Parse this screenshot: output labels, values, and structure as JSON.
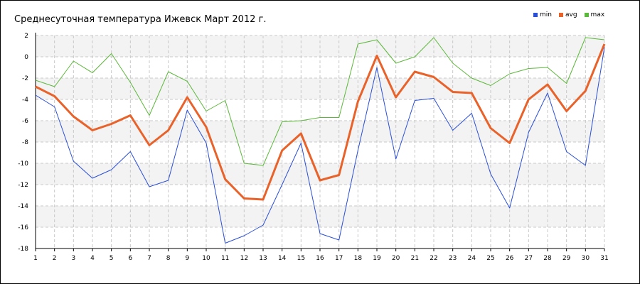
{
  "chart_data": {
    "type": "line",
    "title": "Среднесуточная температура Ижевск  Март 2012 г.",
    "xlabel": "",
    "ylabel": "",
    "x": [
      1,
      2,
      3,
      4,
      5,
      6,
      7,
      8,
      9,
      10,
      11,
      12,
      13,
      14,
      15,
      16,
      17,
      18,
      19,
      20,
      21,
      22,
      23,
      24,
      25,
      26,
      27,
      28,
      29,
      30,
      31
    ],
    "ylim": [
      -18,
      2
    ],
    "yticks": [
      2,
      0,
      -2,
      -4,
      -6,
      -8,
      -10,
      -12,
      -14,
      -16,
      -18
    ],
    "grid": true,
    "legend_position": "top-right",
    "series": [
      {
        "name": "min",
        "color": "#2a4fd6",
        "values": [
          -3.6,
          -4.7,
          -9.8,
          -11.4,
          -10.6,
          -8.9,
          -12.2,
          -11.6,
          -5.0,
          -8.1,
          -17.5,
          -16.8,
          -15.8,
          -12.0,
          -8.1,
          -16.6,
          -17.2,
          -8.8,
          -1.0,
          -9.6,
          -4.1,
          -3.9,
          -6.9,
          -5.3,
          -11.0,
          -14.2,
          -7.1,
          -3.4,
          -8.9,
          -10.2,
          0.9
        ]
      },
      {
        "name": "avg",
        "color": "#e8622a",
        "values": [
          -2.8,
          -3.7,
          -5.6,
          -6.9,
          -6.3,
          -5.5,
          -8.3,
          -6.9,
          -3.8,
          -6.6,
          -11.5,
          -13.3,
          -13.4,
          -8.8,
          -7.2,
          -11.6,
          -11.1,
          -4.2,
          0.1,
          -3.8,
          -1.4,
          -1.9,
          -3.3,
          -3.4,
          -6.7,
          -8.1,
          -4.0,
          -2.6,
          -5.1,
          -3.2,
          1.2
        ]
      },
      {
        "name": "max",
        "color": "#5cb83a",
        "values": [
          -2.2,
          -2.8,
          -0.4,
          -1.5,
          0.3,
          -2.4,
          -5.5,
          -1.4,
          -2.3,
          -5.1,
          -4.1,
          -10.0,
          -10.2,
          -6.1,
          -6.0,
          -5.7,
          -5.7,
          1.2,
          1.6,
          -0.6,
          0.0,
          1.8,
          -0.6,
          -2.0,
          -2.7,
          -1.6,
          -1.1,
          -1.0,
          -2.5,
          1.8,
          1.6
        ]
      }
    ]
  }
}
